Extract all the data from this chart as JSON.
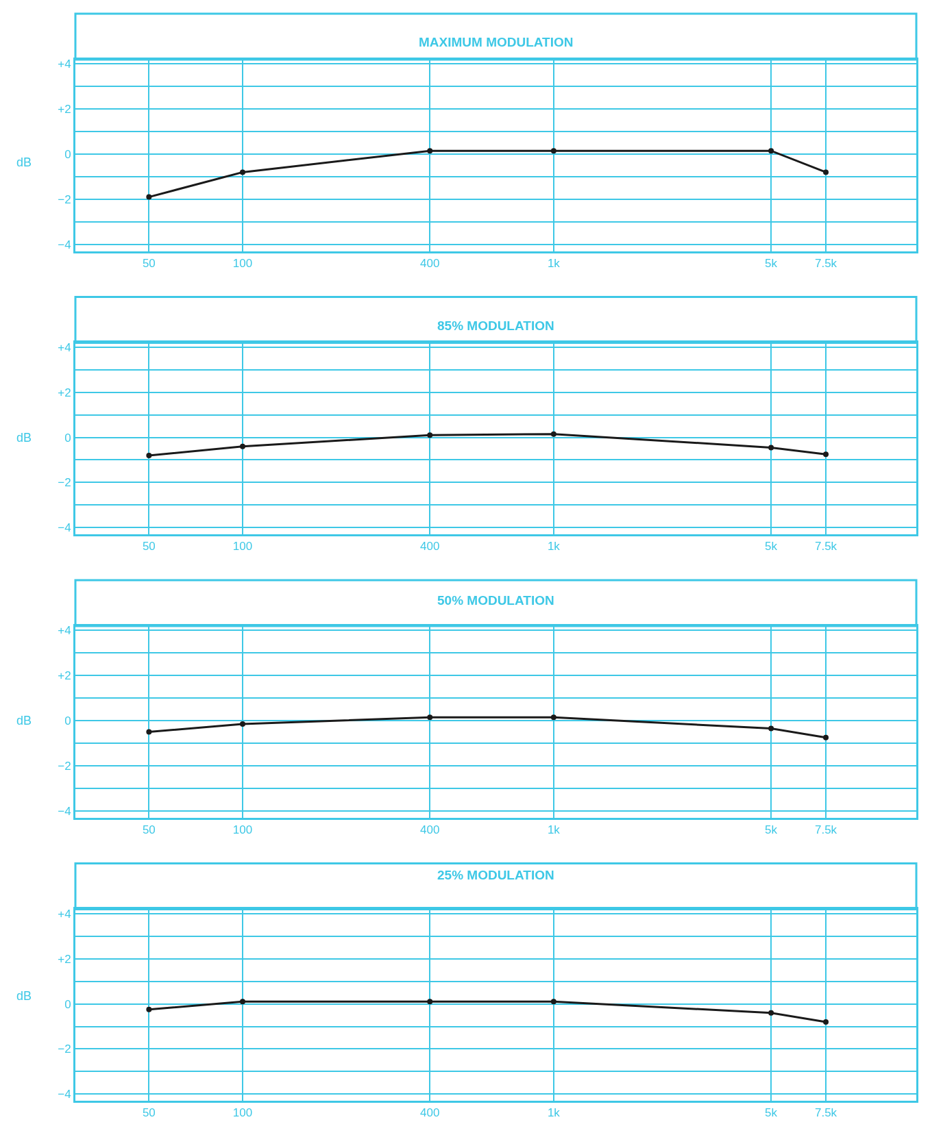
{
  "chart_data": [
    {
      "type": "line",
      "title": "MAXIMUM MODULATION",
      "ylabel": "dB",
      "x": [
        50,
        100,
        400,
        1000,
        5000,
        7500
      ],
      "series": [
        {
          "color": "#1a1a1a",
          "values": [
            -1.9,
            -0.8,
            0.15,
            0.15,
            0.15,
            -0.8
          ]
        }
      ],
      "xlim": [
        29,
        14650
      ],
      "xticks": [
        50,
        100,
        400,
        {
          "value": 1000,
          "label": "1k"
        },
        {
          "value": 5000,
          "label": "5k"
        },
        {
          "value": 7500,
          "label": "7.5k"
        }
      ],
      "ylim": [
        -4.3,
        4.2
      ],
      "yticks": [
        {
          "value": -4,
          "label": "−4"
        },
        {
          "value": -3,
          "label": null
        },
        {
          "value": -2,
          "label": "−2"
        },
        {
          "value": -1,
          "label": null
        },
        0,
        {
          "value": 1,
          "label": null
        },
        {
          "value": 2,
          "label": "+2"
        },
        {
          "value": 3,
          "label": null
        },
        {
          "value": 4,
          "label": "+4"
        }
      ],
      "log": "x",
      "grid": true,
      "marker": "circle",
      "line_style": "solid"
    },
    {
      "type": "line",
      "title": "85% MODULATION",
      "ylabel": "dB",
      "x": [
        50,
        100,
        400,
        1000,
        5000,
        7500
      ],
      "series": [
        {
          "color": "#1a1a1a",
          "values": [
            -0.8,
            -0.4,
            0.1,
            0.15,
            -0.45,
            -0.75
          ]
        }
      ],
      "xlim": [
        29,
        14650
      ],
      "xticks": [
        50,
        100,
        400,
        {
          "value": 1000,
          "label": "1k"
        },
        {
          "value": 5000,
          "label": "5k"
        },
        {
          "value": 7500,
          "label": "7.5k"
        }
      ],
      "ylim": [
        -4.3,
        4.2
      ],
      "yticks": [
        {
          "value": -4,
          "label": "−4"
        },
        {
          "value": -3,
          "label": null
        },
        {
          "value": -2,
          "label": "−2"
        },
        {
          "value": -1,
          "label": null
        },
        0,
        {
          "value": 1,
          "label": null
        },
        {
          "value": 2,
          "label": "+2"
        },
        {
          "value": 3,
          "label": null
        },
        {
          "value": 4,
          "label": "+4"
        }
      ],
      "log": "x",
      "grid": true,
      "marker": "circle",
      "line_style": "solid"
    },
    {
      "type": "line",
      "title": "50% MODULATION",
      "ylabel": "dB",
      "x": [
        50,
        100,
        400,
        1000,
        5000,
        7500
      ],
      "series": [
        {
          "color": "#1a1a1a",
          "values": [
            -0.5,
            -0.15,
            0.15,
            0.15,
            -0.35,
            -0.75
          ]
        }
      ],
      "xlim": [
        29,
        14650
      ],
      "xticks": [
        50,
        100,
        400,
        {
          "value": 1000,
          "label": "1k"
        },
        {
          "value": 5000,
          "label": "5k"
        },
        {
          "value": 7500,
          "label": "7.5k"
        }
      ],
      "ylim": [
        -4.3,
        4.2
      ],
      "yticks": [
        {
          "value": -4,
          "label": "−4"
        },
        {
          "value": -3,
          "label": null
        },
        {
          "value": -2,
          "label": "−2"
        },
        {
          "value": -1,
          "label": null
        },
        0,
        {
          "value": 1,
          "label": null
        },
        {
          "value": 2,
          "label": "+2"
        },
        {
          "value": 3,
          "label": null
        },
        {
          "value": 4,
          "label": "+4"
        }
      ],
      "log": "x",
      "grid": true,
      "marker": "circle",
      "line_style": "solid"
    },
    {
      "type": "line",
      "title": "25% MODULATION",
      "ylabel": "dB",
      "x": [
        50,
        100,
        400,
        1000,
        5000,
        7500
      ],
      "series": [
        {
          "color": "#1a1a1a",
          "values": [
            -0.25,
            0.1,
            0.1,
            0.1,
            -0.4,
            -0.8
          ]
        }
      ],
      "xlim": [
        29,
        14650
      ],
      "xticks": [
        50,
        100,
        400,
        {
          "value": 1000,
          "label": "1k"
        },
        {
          "value": 5000,
          "label": "5k"
        },
        {
          "value": 7500,
          "label": "7.5k"
        }
      ],
      "ylim": [
        -4.3,
        4.2
      ],
      "yticks": [
        {
          "value": -4,
          "label": "−4"
        },
        {
          "value": -3,
          "label": null
        },
        {
          "value": -2,
          "label": "−2"
        },
        {
          "value": -1,
          "label": null
        },
        0,
        {
          "value": 1,
          "label": null
        },
        {
          "value": 2,
          "label": "+2"
        },
        {
          "value": 3,
          "label": null
        },
        {
          "value": 4,
          "label": "+4"
        }
      ],
      "log": "x",
      "grid": true,
      "marker": "circle",
      "line_style": "solid"
    }
  ]
}
